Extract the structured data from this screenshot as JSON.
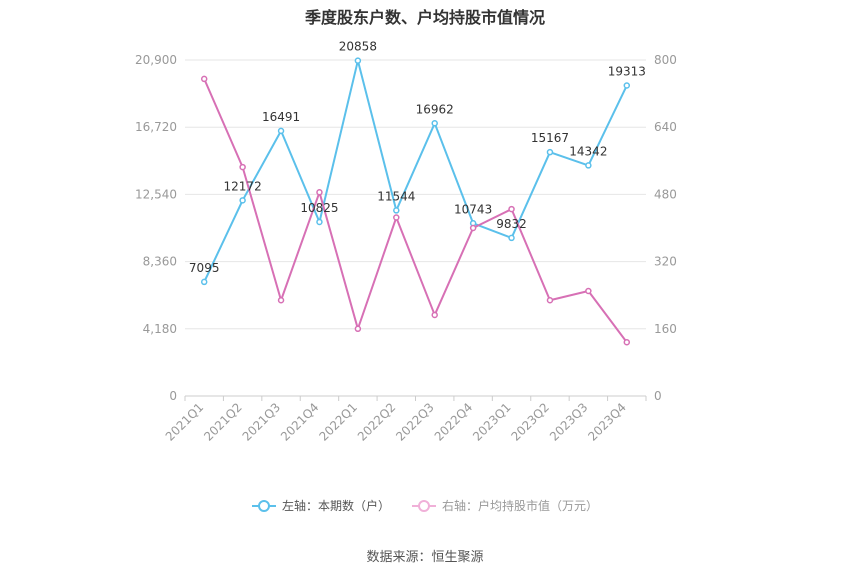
{
  "title": "季度股东户数、户均持股市值情况",
  "source": "数据来源：恒生聚源",
  "colors": {
    "left_series": "#5bc0eb",
    "right_series": "#d770b5",
    "grid": "#e6e6e6",
    "axis_text": "#999999"
  },
  "chart_data": {
    "type": "line",
    "categories": [
      "2021Q1",
      "2021Q2",
      "2021Q3",
      "2021Q4",
      "2022Q1",
      "2022Q2",
      "2022Q3",
      "2022Q4",
      "2023Q1",
      "2023Q2",
      "2023Q3",
      "2023Q4"
    ],
    "left_axis": {
      "min": 0,
      "max": 20900,
      "ticks": [
        "0",
        "4,180",
        "8,360",
        "12,540",
        "16,720",
        "20,900"
      ]
    },
    "right_axis": {
      "min": 0,
      "max": 800,
      "ticks": [
        "0",
        "160",
        "320",
        "480",
        "640",
        "800"
      ]
    },
    "series": [
      {
        "name": "左轴：本期数（户）",
        "axis": "left",
        "values": [
          7095,
          12172,
          16491,
          10825,
          20858,
          11544,
          16962,
          10743,
          9832,
          15167,
          14342,
          19313
        ],
        "labels": [
          "7095",
          "12172",
          "16491",
          "10825",
          "20858",
          "11544",
          "16962",
          "10743",
          "9832",
          "15167",
          "14342",
          "19313"
        ]
      },
      {
        "name": "右轴：户均持股市值（万元）",
        "axis": "right",
        "values": [
          755,
          545,
          228,
          485,
          160,
          425,
          193,
          400,
          445,
          228,
          250,
          128
        ]
      }
    ],
    "grid": true,
    "legend_position": "bottom"
  }
}
